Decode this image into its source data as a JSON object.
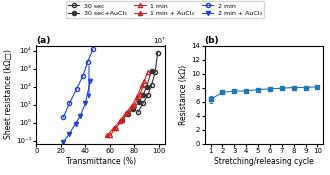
{
  "chart_data": [
    {
      "type": "line",
      "title": "(a)",
      "x_label": "Transmittance (%)",
      "y_label": "Sheet resistance (kΩ□)",
      "log": "y",
      "xlim": [
        0,
        105
      ],
      "xticks": [
        0,
        20,
        40,
        60,
        80,
        100
      ],
      "ylim": [
        0.07,
        20000
      ],
      "yticks": [
        {
          "value": 0.1,
          "label": "10⁻¹"
        },
        {
          "value": 1,
          "label": "10⁰"
        },
        {
          "value": 10,
          "label": "10¹"
        },
        {
          "value": 100,
          "label": "10²"
        },
        {
          "value": 1000,
          "label": "10³"
        },
        {
          "value": 10000,
          "label": "10⁴"
        }
      ],
      "legend": "upper center",
      "annotations": [
        {
          "text": "10⁷"
        }
      ],
      "arrows": [
        {
          "from": [
            43,
            2000
          ],
          "to": [
            43,
            15
          ],
          "color": "#2244cc"
        }
      ],
      "series": [
        {
          "name": "30 sec",
          "color": "#333333",
          "marker": "open circle",
          "x": [
            83,
            87,
            91,
            94,
            97,
            99
          ],
          "values": [
            4,
            12,
            35,
            120,
            700,
            8000
          ]
        },
        {
          "name": "30 sec+AuCl₃",
          "color": "#333333",
          "marker": "filled circle",
          "x": [
            70,
            75,
            79,
            84,
            87,
            90,
            94
          ],
          "values": [
            1.5,
            3,
            6,
            15,
            35,
            100,
            800
          ]
        },
        {
          "name": "1 min",
          "color": "#cc2222",
          "marker": "open triangle_up",
          "x": [
            60,
            65,
            70,
            75,
            80,
            85,
            88,
            91
          ],
          "values": [
            0.2,
            0.5,
            1.5,
            4,
            10,
            40,
            200,
            700
          ]
        },
        {
          "name": "1 min + AuCl₃",
          "color": "#cc2222",
          "marker": "filled triangle_up",
          "x": [
            58,
            63,
            68,
            73,
            78,
            82,
            86
          ],
          "values": [
            0.2,
            0.5,
            1.2,
            3.5,
            9,
            28,
            120
          ]
        },
        {
          "name": "2 min",
          "color": "#2244cc",
          "marker": "open circle",
          "x": [
            22,
            27,
            33,
            38,
            42,
            46
          ],
          "values": [
            2,
            12,
            80,
            400,
            2500,
            12000
          ]
        },
        {
          "name": "2 min + AuCl₃",
          "color": "#2244cc",
          "marker": "filled triangle_down",
          "x": [
            22,
            27,
            32,
            36,
            40,
            44
          ],
          "values": [
            0.08,
            0.25,
            0.9,
            2.5,
            12,
            200
          ]
        }
      ]
    },
    {
      "type": "line",
      "title": "(b)",
      "x_label": "Stretching/releasing cycle",
      "y_label": "Resistance (kΩ)",
      "xlim": [
        0.5,
        10.5
      ],
      "xticks": [
        1,
        2,
        3,
        4,
        5,
        6,
        7,
        8,
        9,
        10
      ],
      "ylim": [
        0,
        14
      ],
      "yticks": [
        0,
        2,
        4,
        6,
        8,
        10,
        12,
        14
      ],
      "series": [
        {
          "marker": "filled square",
          "x": [
            1,
            2,
            3,
            4,
            5,
            6,
            7,
            8,
            9,
            10
          ],
          "values": [
            6.3,
            7.3,
            7.5,
            7.5,
            7.7,
            7.8,
            7.9,
            8.0,
            8.0,
            8.1
          ],
          "errors": [
            0.5,
            0.25,
            0.2,
            0.2,
            0.2,
            0.2,
            0.2,
            0.2,
            0.2,
            0.2
          ]
        }
      ]
    }
  ]
}
